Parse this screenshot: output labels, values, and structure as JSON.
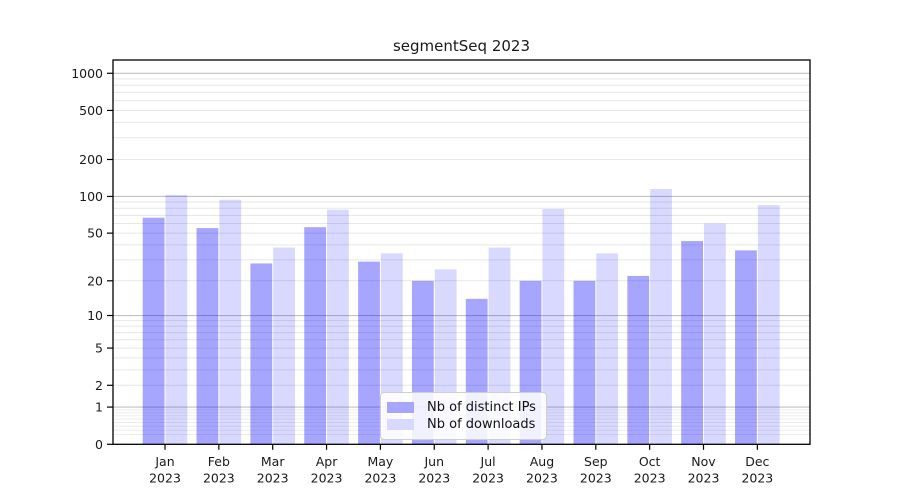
{
  "chart_data": {
    "type": "bar",
    "title": "segmentSeq 2023",
    "categories": [
      "Jan",
      "Feb",
      "Mar",
      "Apr",
      "May",
      "Jun",
      "Jul",
      "Aug",
      "Sep",
      "Oct",
      "Nov",
      "Dec"
    ],
    "category_year": "2023",
    "series": [
      {
        "name": "Nb of distinct IPs",
        "color": "rgba(0,0,255,0.35)",
        "legend_color": "#a6a6ff",
        "values": [
          67,
          55,
          28,
          56,
          29,
          20,
          14,
          20,
          20,
          22,
          43,
          36
        ]
      },
      {
        "name": "Nb of downloads",
        "color": "rgba(0,0,255,0.15)",
        "legend_color": "#d9d9ff",
        "values": [
          103,
          94,
          38,
          78,
          34,
          25,
          38,
          79,
          34,
          115,
          60,
          85
        ]
      }
    ],
    "xlabel": "",
    "ylabel": "",
    "y_scale": "log1p",
    "y_scale_formula": "y position proportional to log10(1+value)",
    "ylim": [
      0,
      1280
    ],
    "y_tick_labels": [
      0,
      1,
      2,
      5,
      10,
      20,
      50,
      100,
      200,
      500,
      1000
    ],
    "grid": {
      "major_lines": [
        1,
        10,
        100,
        1000
      ],
      "minor_decades": [
        0.1,
        1,
        10,
        100
      ],
      "minor_subs": [
        2,
        3,
        4,
        5,
        6,
        7,
        8,
        9
      ],
      "major_color": "#c2c2c2",
      "minor_color": "#e7e7e7",
      "sub1_minor_color": "#ededed"
    },
    "legend_position": "lower center",
    "spine_color": "#000000",
    "tick_color": "#000000",
    "text_color": "#1a1a1a"
  }
}
